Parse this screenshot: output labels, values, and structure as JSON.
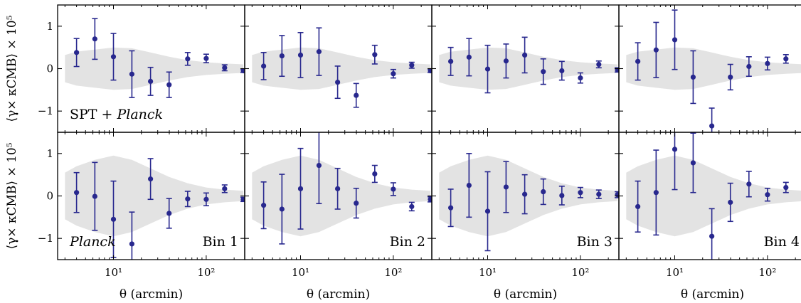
{
  "chart_data": {
    "type": "scatter",
    "x_axis_label": "θ (arcmin)",
    "y_axis_label": "⟨γ× κCMB⟩ × 10⁵",
    "x_scale": "log",
    "xlim": [
      2.5,
      260
    ],
    "ylim": [
      -1.5,
      1.5
    ],
    "x_ticks": [
      10,
      100
    ],
    "x_tick_labels": [
      "10¹",
      "10²"
    ],
    "y_ticks": [
      -1,
      0,
      1
    ],
    "y_tick_labels": [
      "−1",
      "0",
      "1"
    ],
    "theta": [
      4.0,
      6.3,
      10.0,
      15.8,
      25.1,
      39.8,
      63.1,
      100,
      158,
      251
    ],
    "band": {
      "x": [
        3.0,
        4.0,
        6.3,
        10.0,
        15.8,
        25.1,
        39.8,
        63.1,
        100,
        158,
        251
      ],
      "rows": [
        {
          "upper": [
            0.32,
            0.4,
            0.45,
            0.5,
            0.48,
            0.38,
            0.28,
            0.2,
            0.15,
            0.12,
            0.1
          ],
          "lower": [
            -0.32,
            -0.4,
            -0.45,
            -0.5,
            -0.48,
            -0.38,
            -0.28,
            -0.2,
            -0.15,
            -0.12,
            -0.1
          ]
        },
        {
          "upper": [
            0.55,
            0.7,
            0.85,
            0.95,
            0.85,
            0.65,
            0.45,
            0.3,
            0.2,
            0.15,
            0.12
          ],
          "lower": [
            -0.55,
            -0.7,
            -0.85,
            -0.95,
            -0.85,
            -0.65,
            -0.45,
            -0.3,
            -0.2,
            -0.15,
            -0.12
          ]
        }
      ]
    },
    "panels": [
      {
        "row": 0,
        "col": 0,
        "label": "",
        "annotation": "SPT + ",
        "annotation_italic": "Planck",
        "values": [
          0.38,
          0.7,
          0.28,
          -0.13,
          -0.3,
          -0.38,
          0.23,
          0.24,
          0.02,
          -0.05
        ],
        "errors": [
          0.33,
          0.48,
          0.55,
          0.55,
          0.33,
          0.3,
          0.15,
          0.1,
          0.07,
          0.04
        ]
      },
      {
        "row": 0,
        "col": 1,
        "label": "",
        "annotation": "",
        "annotation_italic": "",
        "values": [
          0.06,
          0.3,
          0.32,
          0.4,
          -0.32,
          -0.63,
          0.33,
          -0.12,
          0.08,
          -0.05
        ],
        "errors": [
          0.32,
          0.48,
          0.53,
          0.56,
          0.38,
          0.28,
          0.22,
          0.1,
          0.07,
          0.04
        ]
      },
      {
        "row": 0,
        "col": 2,
        "label": "",
        "annotation": "",
        "annotation_italic": "",
        "values": [
          0.17,
          0.27,
          -0.01,
          0.18,
          0.32,
          -0.07,
          -0.05,
          -0.22,
          0.1,
          -0.03
        ],
        "errors": [
          0.33,
          0.44,
          0.56,
          0.4,
          0.42,
          0.3,
          0.22,
          0.12,
          0.08,
          0.05
        ]
      },
      {
        "row": 0,
        "col": 3,
        "label": "",
        "annotation": "",
        "annotation_italic": "",
        "values": [
          0.17,
          0.44,
          0.68,
          -0.2,
          -1.35,
          -0.2,
          0.05,
          0.12,
          0.23,
          0.05
        ],
        "errors": [
          0.44,
          0.65,
          0.7,
          0.62,
          0.42,
          0.3,
          0.23,
          0.15,
          0.1,
          0.08
        ]
      },
      {
        "row": 1,
        "col": 0,
        "label": "Bin 1",
        "annotation": "",
        "annotation_italic": "Planck",
        "values": [
          0.08,
          -0.01,
          -0.55,
          -1.13,
          0.4,
          -0.41,
          -0.07,
          -0.08,
          0.17,
          -0.08
        ],
        "errors": [
          0.47,
          0.8,
          0.9,
          0.75,
          0.48,
          0.35,
          0.18,
          0.15,
          0.09,
          0.05
        ]
      },
      {
        "row": 1,
        "col": 1,
        "label": "Bin 2",
        "annotation": "",
        "annotation_italic": "",
        "values": [
          -0.22,
          -0.31,
          0.17,
          0.72,
          0.17,
          -0.17,
          0.52,
          0.16,
          -0.25,
          -0.08
        ],
        "errors": [
          0.55,
          0.82,
          0.95,
          0.9,
          0.48,
          0.35,
          0.2,
          0.15,
          0.1,
          0.06
        ]
      },
      {
        "row": 1,
        "col": 2,
        "label": "Bin 3",
        "annotation": "",
        "annotation_italic": "",
        "values": [
          -0.28,
          0.25,
          -0.36,
          0.21,
          0.04,
          0.1,
          0.01,
          0.08,
          0.04,
          0.03
        ],
        "errors": [
          0.44,
          0.75,
          0.93,
          0.6,
          0.46,
          0.3,
          0.22,
          0.12,
          0.1,
          0.07
        ]
      },
      {
        "row": 1,
        "col": 3,
        "label": "Bin 4",
        "annotation": "",
        "annotation_italic": "",
        "values": [
          -0.25,
          0.08,
          1.1,
          0.78,
          -0.95,
          -0.15,
          0.28,
          0.03,
          0.2,
          -0.1
        ],
        "errors": [
          0.6,
          1.0,
          0.95,
          0.7,
          0.65,
          0.45,
          0.3,
          0.15,
          0.12,
          0.08
        ]
      }
    ],
    "colors": {
      "points": "#28288e",
      "band": "#e3e3e3",
      "axes": "#000000"
    },
    "grid": false,
    "legend": "none"
  }
}
